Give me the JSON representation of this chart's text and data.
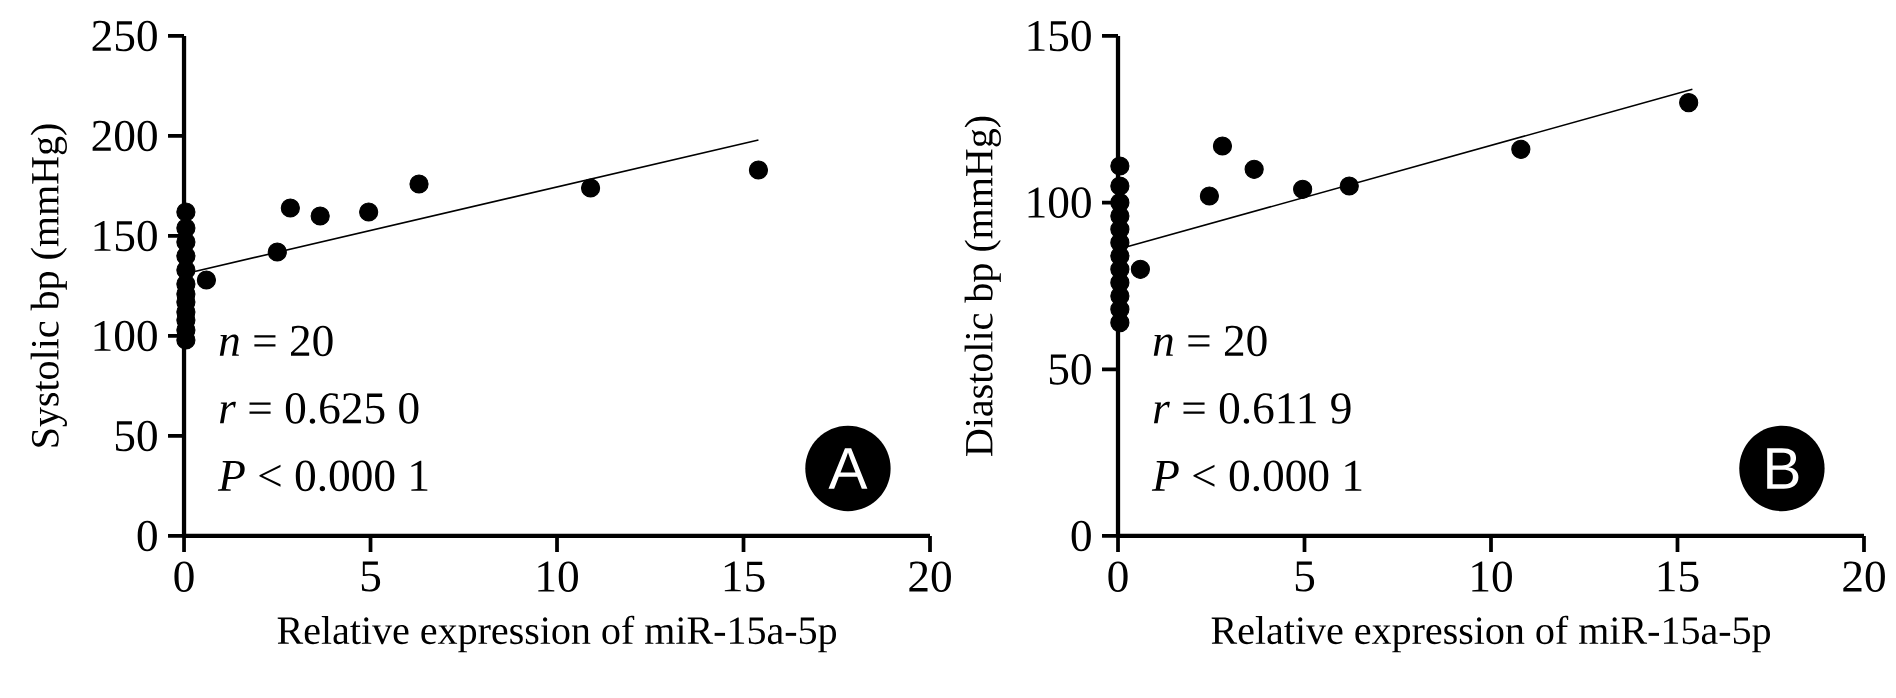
{
  "chart_data": [
    {
      "type": "scatter",
      "xlabel": "Relative expression of miR-15a-5p",
      "ylabel": "Systolic bp (mmHg)",
      "xlim": [
        0,
        20
      ],
      "xticks": [
        0,
        5,
        10,
        15,
        20
      ],
      "ylim": [
        0,
        250
      ],
      "yticks": [
        0,
        50,
        100,
        150,
        200,
        250
      ],
      "annotations": [
        "*n* = 20",
        "*r* = 0.625 0",
        "*P* < 0.000 1",
        "A"
      ],
      "series": [
        {
          "marker": "circle",
          "color": "#000000",
          "x": [
            0.05,
            0.05,
            0.05,
            0.05,
            0.05,
            0.05,
            0.05,
            0.05,
            0.05,
            0.05,
            0.05,
            0.05,
            0.6,
            2.5,
            2.85,
            3.65,
            4.95,
            6.3,
            10.9,
            15.4
          ],
          "values": [
            98,
            103,
            108,
            112,
            117,
            121,
            126,
            133,
            140,
            147,
            154,
            162,
            128,
            142,
            164,
            160,
            162,
            176,
            174,
            183
          ]
        },
        {
          "type": "line",
          "marker": "none",
          "color": "#000000",
          "x": [
            0,
            15.4
          ],
          "values": [
            131,
            198
          ]
        }
      ]
    },
    {
      "type": "scatter",
      "xlabel": "Relative expression of miR-15a-5p",
      "ylabel": "Diastolic bp (mmHg)",
      "xlim": [
        0,
        20
      ],
      "xticks": [
        0,
        5,
        10,
        15,
        20
      ],
      "ylim": [
        0,
        150
      ],
      "yticks": [
        0,
        50,
        100,
        150
      ],
      "annotations": [
        "*n* = 20",
        "*r* = 0.611 9",
        "*P* < 0.000 1",
        "B"
      ],
      "series": [
        {
          "marker": "circle",
          "color": "#000000",
          "x": [
            0.05,
            0.05,
            0.05,
            0.05,
            0.05,
            0.05,
            0.05,
            0.05,
            0.05,
            0.05,
            0.05,
            0.05,
            0.6,
            2.45,
            2.8,
            3.65,
            4.95,
            6.2,
            10.8,
            15.3
          ],
          "values": [
            64,
            68,
            72,
            76,
            80,
            84,
            88,
            92,
            96,
            100,
            105,
            111,
            80,
            102,
            117,
            110,
            104,
            105,
            116,
            130
          ]
        },
        {
          "type": "line",
          "marker": "none",
          "color": "#000000",
          "x": [
            0,
            15.4
          ],
          "values": [
            86,
            134
          ]
        }
      ]
    }
  ]
}
